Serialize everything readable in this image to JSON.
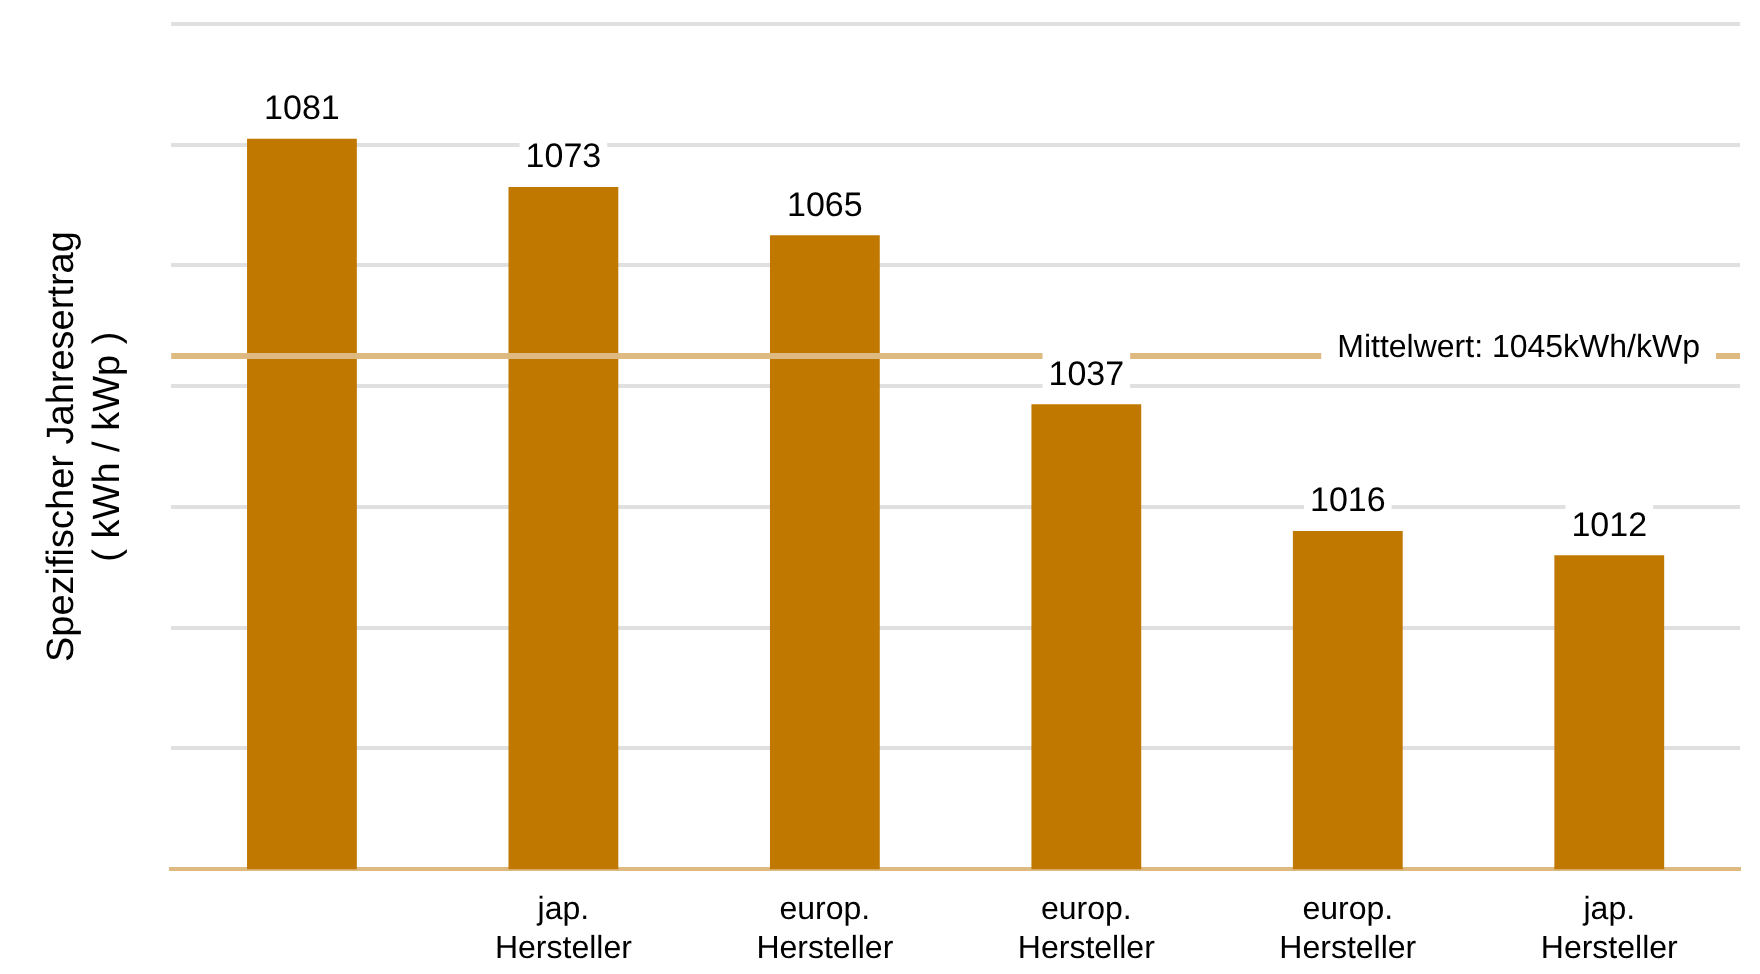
{
  "chart_data": {
    "type": "bar",
    "ylabel": "Spezifischer Jahresertrag\n( kWh / kWp )",
    "categories": [
      null,
      "jap. Hersteller",
      "europ. Hersteller",
      "europ. Hersteller",
      "europ. Hersteller",
      "jap. Hersteller"
    ],
    "values": [
      1081,
      1073,
      1065,
      1037,
      1016,
      1012
    ],
    "color": "#c07800",
    "data_labels": true,
    "ylim": [
      960,
      1100
    ],
    "yticks": [
      {
        "value": 960,
        "label": null
      },
      {
        "value": 980,
        "label": null
      },
      {
        "value": 1000,
        "label": null
      },
      {
        "value": 1020,
        "label": null
      },
      {
        "value": 1040,
        "label": null
      },
      {
        "value": 1060,
        "label": null
      },
      {
        "value": 1080,
        "label": null
      },
      {
        "value": 1100,
        "label": null
      }
    ],
    "tick_labels": "x",
    "grid": "y",
    "ref_lines": [
      {
        "axis": "y",
        "value": 1045,
        "label": "Mittelwert: 1045kWh/kWp",
        "color": "#deba80"
      }
    ]
  }
}
